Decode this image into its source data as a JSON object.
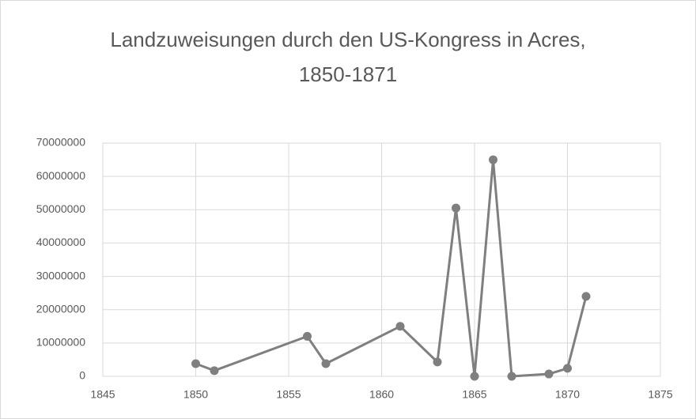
{
  "chart_data": {
    "type": "line",
    "title": "Landzuweisungen durch den US-Kongress in Acres, 1850-1871",
    "x": [
      1850,
      1851,
      1856,
      1857,
      1861,
      1863,
      1864,
      1865,
      1866,
      1867,
      1869,
      1870,
      1871
    ],
    "series": [
      {
        "name": "Acres",
        "color": "#7f7f7f",
        "values": [
          3800000,
          1700000,
          12000000,
          3800000,
          15000000,
          4300000,
          50500000,
          0,
          65000000,
          0,
          700000,
          2400000,
          24000000
        ]
      }
    ],
    "xlim": [
      1845,
      1875
    ],
    "xticks": [
      1845,
      1850,
      1855,
      1860,
      1865,
      1870,
      1875
    ],
    "ylim": [
      0,
      70000000
    ],
    "yticks": [
      0,
      10000000,
      20000000,
      30000000,
      40000000,
      50000000,
      60000000,
      70000000
    ],
    "grid": true,
    "legend": false
  }
}
